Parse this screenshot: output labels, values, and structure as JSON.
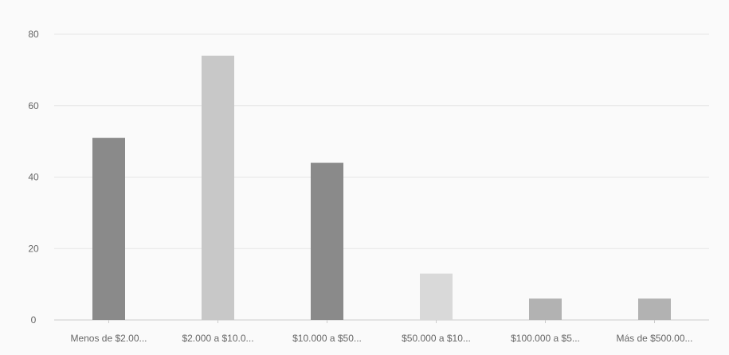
{
  "chart_data": {
    "type": "bar",
    "categories": [
      "Menos de $2.00...",
      "$2.000 a $10.0...",
      "$10.000 a $50...",
      "$50.000 a $10...",
      "$100.000 a $5...",
      "Más de $500.00..."
    ],
    "values": [
      51,
      74,
      44,
      13,
      6,
      6
    ],
    "bar_colors": [
      "#8a8a8a",
      "#c8c8c8",
      "#8a8a8a",
      "#d9d9d9",
      "#b2b2b2",
      "#b2b2b2"
    ],
    "ylim": [
      0,
      80
    ],
    "yticks": [
      "0",
      "20",
      "40",
      "60",
      "80"
    ],
    "grid": true,
    "legend": "none",
    "title": "",
    "xlabel": "",
    "ylabel": ""
  }
}
